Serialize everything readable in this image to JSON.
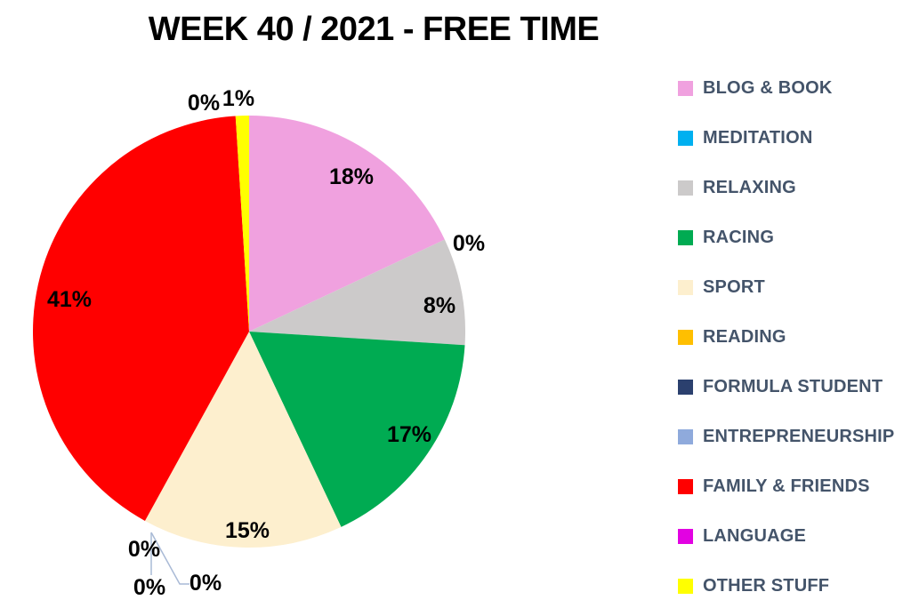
{
  "title": "WEEK 40 / 2021 - FREE TIME",
  "colors": {
    "background": "#FFFFFF",
    "title_text": "#000000",
    "data_label_text": "#000000",
    "legend_text": "#44546A",
    "leader_line": "#A9BAD6"
  },
  "chart_data": {
    "type": "pie",
    "title": "WEEK 40 / 2021 - FREE TIME",
    "unit": "%",
    "start_angle_deg": 0,
    "direction": "clockwise",
    "legend_position": "right",
    "grid": false,
    "categories": [
      "BLOG & BOOK",
      "MEDITATION",
      "RELAXING",
      "RACING",
      "SPORT",
      "READING",
      "FORMULA STUDENT",
      "ENTREPRENEURSHIP",
      "FAMILY & FRIENDS",
      "LANGUAGE",
      "OTHER STUFF"
    ],
    "values": [
      18,
      0,
      8,
      17,
      15,
      0,
      0,
      0,
      41,
      0,
      1
    ],
    "slice_colors": [
      "#F0A1DF",
      "#00B0F0",
      "#CCCACA",
      "#00AB52",
      "#FDEFCE",
      "#FFBF00",
      "#2B406E",
      "#8FAADC",
      "#FF0000",
      "#E202E2",
      "#FFFF00"
    ],
    "data_labels": [
      "18%",
      "0%",
      "8%",
      "17%",
      "15%",
      "0%",
      "0%",
      "0%",
      "41%",
      "0%",
      "1%"
    ]
  }
}
